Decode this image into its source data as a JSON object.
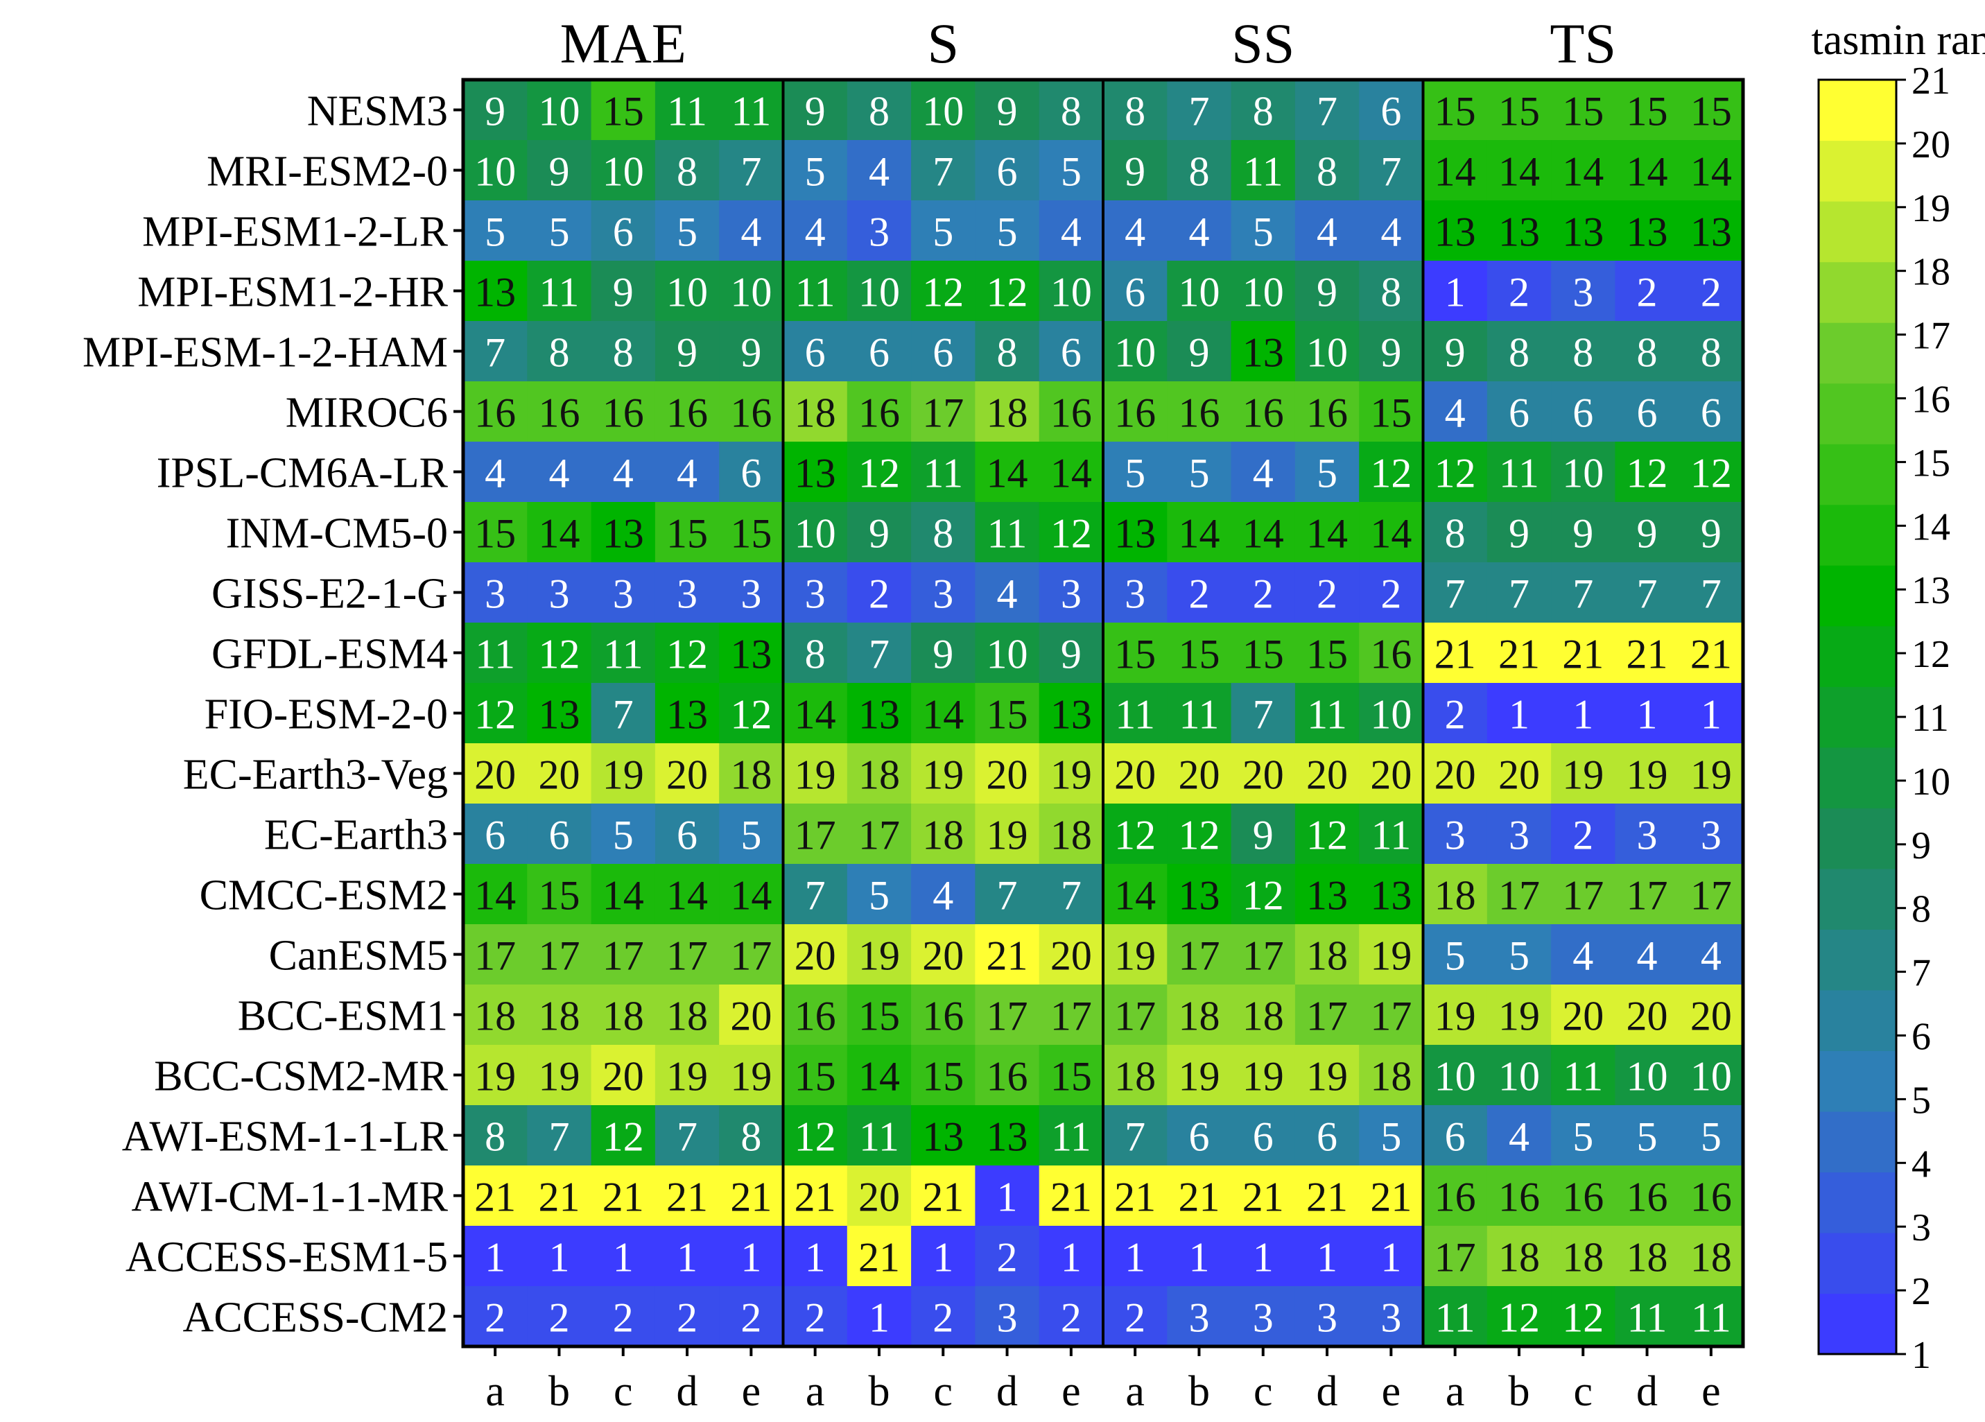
{
  "chart_data": {
    "type": "heatmap",
    "title": "",
    "colorbar_label": "tasmin rank",
    "colorbar_ticks": [
      "1",
      "2",
      "3",
      "4",
      "5",
      "6",
      "7",
      "8",
      "9",
      "10",
      "11",
      "12",
      "13",
      "14",
      "15",
      "16",
      "17",
      "18",
      "19",
      "20",
      "21"
    ],
    "vmin": 1,
    "vmax": 21,
    "colormap_stops": [
      "#3c3cff",
      "#2e7fb6",
      "#1b8c56",
      "#00b400",
      "#6ccc2c",
      "#ffff32"
    ],
    "groups": [
      "MAE",
      "S",
      "SS",
      "TS"
    ],
    "columns": [
      "a",
      "b",
      "c",
      "d",
      "e"
    ],
    "models": [
      "NESM3",
      "MRI-ESM2-0",
      "MPI-ESM1-2-LR",
      "MPI-ESM1-2-HR",
      "MPI-ESM-1-2-HAM",
      "MIROC6",
      "IPSL-CM6A-LR",
      "INM-CM5-0",
      "GISS-E2-1-G",
      "GFDL-ESM4",
      "FIO-ESM-2-0",
      "EC-Earth3-Veg",
      "EC-Earth3",
      "CMCC-ESM2",
      "CanESM5",
      "BCC-ESM1",
      "BCC-CSM2-MR",
      "AWI-ESM-1-1-LR",
      "AWI-CM-1-1-MR",
      "ACCESS-ESM1-5",
      "ACCESS-CM2"
    ],
    "values": [
      [
        9,
        10,
        15,
        11,
        11,
        9,
        8,
        10,
        9,
        8,
        8,
        7,
        8,
        7,
        6,
        15,
        15,
        15,
        15,
        15
      ],
      [
        10,
        9,
        10,
        8,
        7,
        5,
        4,
        7,
        6,
        5,
        9,
        8,
        11,
        8,
        7,
        14,
        14,
        14,
        14,
        14
      ],
      [
        5,
        5,
        6,
        5,
        4,
        4,
        3,
        5,
        5,
        4,
        4,
        4,
        5,
        4,
        4,
        13,
        13,
        13,
        13,
        13
      ],
      [
        13,
        11,
        9,
        10,
        10,
        11,
        10,
        12,
        12,
        10,
        6,
        10,
        10,
        9,
        8,
        1,
        2,
        3,
        2,
        2
      ],
      [
        7,
        8,
        8,
        9,
        9,
        6,
        6,
        6,
        8,
        6,
        10,
        9,
        13,
        10,
        9,
        9,
        8,
        8,
        8,
        8
      ],
      [
        16,
        16,
        16,
        16,
        16,
        18,
        16,
        17,
        18,
        16,
        16,
        16,
        16,
        16,
        15,
        4,
        6,
        6,
        6,
        6
      ],
      [
        4,
        4,
        4,
        4,
        6,
        13,
        12,
        11,
        14,
        14,
        5,
        5,
        4,
        5,
        12,
        12,
        11,
        10,
        12,
        12
      ],
      [
        15,
        14,
        13,
        15,
        15,
        10,
        9,
        8,
        11,
        12,
        13,
        14,
        14,
        14,
        14,
        8,
        9,
        9,
        9,
        9
      ],
      [
        3,
        3,
        3,
        3,
        3,
        3,
        2,
        3,
        4,
        3,
        3,
        2,
        2,
        2,
        2,
        7,
        7,
        7,
        7,
        7
      ],
      [
        11,
        12,
        11,
        12,
        13,
        8,
        7,
        9,
        10,
        9,
        15,
        15,
        15,
        15,
        16,
        21,
        21,
        21,
        21,
        21
      ],
      [
        12,
        13,
        7,
        13,
        12,
        14,
        13,
        14,
        15,
        13,
        11,
        11,
        7,
        11,
        10,
        2,
        1,
        1,
        1,
        1
      ],
      [
        20,
        20,
        19,
        20,
        18,
        19,
        18,
        19,
        20,
        19,
        20,
        20,
        20,
        20,
        20,
        20,
        20,
        19,
        19,
        19
      ],
      [
        6,
        6,
        5,
        6,
        5,
        17,
        17,
        18,
        19,
        18,
        12,
        12,
        9,
        12,
        11,
        3,
        3,
        2,
        3,
        3
      ],
      [
        14,
        15,
        14,
        14,
        14,
        7,
        5,
        4,
        7,
        7,
        14,
        13,
        12,
        13,
        13,
        18,
        17,
        17,
        17,
        17
      ],
      [
        17,
        17,
        17,
        17,
        17,
        20,
        19,
        20,
        21,
        20,
        19,
        17,
        17,
        18,
        19,
        5,
        5,
        4,
        4,
        4
      ],
      [
        18,
        18,
        18,
        18,
        20,
        16,
        15,
        16,
        17,
        17,
        17,
        18,
        18,
        17,
        17,
        19,
        19,
        20,
        20,
        20
      ],
      [
        19,
        19,
        20,
        19,
        19,
        15,
        14,
        15,
        16,
        15,
        18,
        19,
        19,
        19,
        18,
        10,
        10,
        11,
        10,
        10
      ],
      [
        8,
        7,
        12,
        7,
        8,
        12,
        11,
        13,
        13,
        11,
        7,
        6,
        6,
        6,
        5,
        6,
        4,
        5,
        5,
        5
      ],
      [
        21,
        21,
        21,
        21,
        21,
        21,
        20,
        21,
        1,
        21,
        21,
        21,
        21,
        21,
        21,
        16,
        16,
        16,
        16,
        16
      ],
      [
        1,
        1,
        1,
        1,
        1,
        1,
        21,
        1,
        2,
        1,
        1,
        1,
        1,
        1,
        1,
        17,
        18,
        18,
        18,
        18
      ],
      [
        2,
        2,
        2,
        2,
        2,
        2,
        1,
        2,
        3,
        2,
        2,
        3,
        3,
        3,
        3,
        11,
        12,
        12,
        11,
        11
      ]
    ]
  }
}
